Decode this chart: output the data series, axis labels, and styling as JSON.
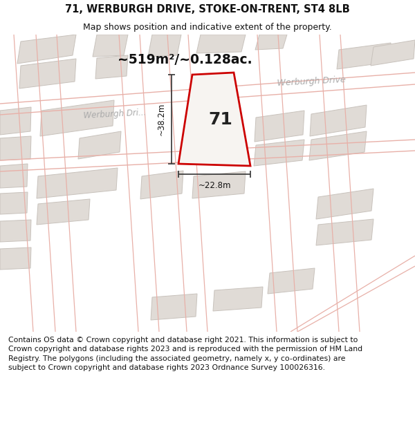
{
  "title_line1": "71, WERBURGH DRIVE, STOKE-ON-TRENT, ST4 8LB",
  "title_line2": "Map shows position and indicative extent of the property.",
  "area_text": "~519m²/~0.128ac.",
  "plot_number": "71",
  "dim_height": "~38.2m",
  "dim_width": "~22.8m",
  "road_label_diag": "Werburgh Dri...",
  "road_label_upper": "Werburgh Drive",
  "map_bg": "#f7f4f1",
  "building_fill": "#e0dbd6",
  "building_stroke": "#c8c2bc",
  "road_line_color": "#e8b0a8",
  "plot_fill": "#f7f4f1",
  "plot_stroke": "#cc0000",
  "footer_text": "Contains OS data © Crown copyright and database right 2021. This information is subject to Crown copyright and database rights 2023 and is reproduced with the permission of HM Land Registry. The polygons (including the associated geometry, namely x, y co-ordinates) are subject to Crown copyright and database rights 2023 Ordnance Survey 100026316.",
  "title_fontsize": 10.5,
  "subtitle_fontsize": 9,
  "footer_fontsize": 7.8,
  "dim_fontsize": 8.5,
  "area_fontsize": 13.5,
  "plot_num_fontsize": 18
}
